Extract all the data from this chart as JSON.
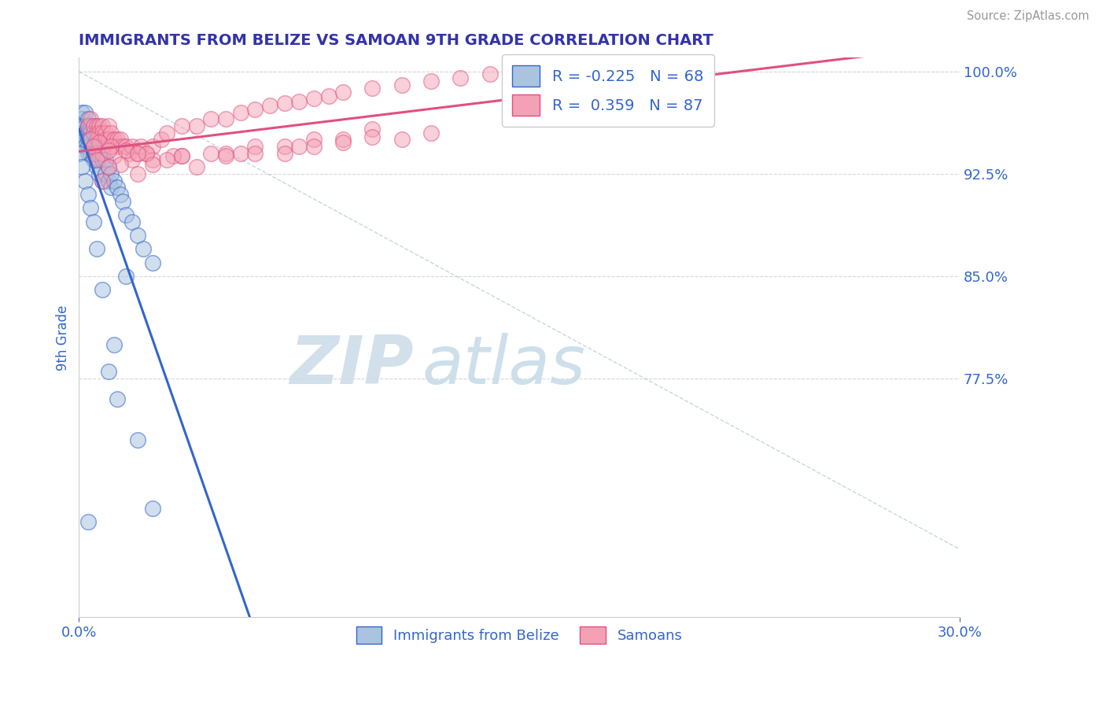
{
  "title": "IMMIGRANTS FROM BELIZE VS SAMOAN 9TH GRADE CORRELATION CHART",
  "source_text": "Source: ZipAtlas.com",
  "ylabel": "9th Grade",
  "xlim": [
    0.0,
    0.3
  ],
  "ylim": [
    0.6,
    1.01
  ],
  "color_blue": "#aac4e0",
  "color_pink": "#f4a0b5",
  "line_blue": "#3366cc",
  "line_pink": "#e05080",
  "title_color": "#3333aa",
  "tick_color": "#3366cc",
  "watermark": "ZIPatlas",
  "watermark_color": "#ccdde8",
  "ytick_values": [
    1.0,
    0.925,
    0.85,
    0.775
  ],
  "ytick_labels": [
    "100.0%",
    "92.5%",
    "85.0%",
    "77.5%"
  ],
  "belize_x": [
    0.0,
    0.0,
    0.0,
    0.001,
    0.001,
    0.001,
    0.001,
    0.001,
    0.002,
    0.002,
    0.002,
    0.002,
    0.002,
    0.003,
    0.003,
    0.003,
    0.003,
    0.003,
    0.003,
    0.004,
    0.004,
    0.004,
    0.004,
    0.005,
    0.005,
    0.005,
    0.005,
    0.006,
    0.006,
    0.006,
    0.006,
    0.007,
    0.007,
    0.007,
    0.007,
    0.008,
    0.008,
    0.008,
    0.009,
    0.009,
    0.01,
    0.01,
    0.011,
    0.011,
    0.012,
    0.013,
    0.014,
    0.015,
    0.016,
    0.018,
    0.02,
    0.022,
    0.025,
    0.0,
    0.001,
    0.002,
    0.003,
    0.004,
    0.005,
    0.006,
    0.008,
    0.012,
    0.02,
    0.025,
    0.013,
    0.003,
    0.01,
    0.016
  ],
  "belize_y": [
    0.96,
    0.955,
    0.95,
    0.97,
    0.965,
    0.96,
    0.955,
    0.95,
    0.97,
    0.96,
    0.955,
    0.95,
    0.945,
    0.965,
    0.96,
    0.955,
    0.95,
    0.945,
    0.94,
    0.96,
    0.955,
    0.95,
    0.94,
    0.96,
    0.955,
    0.945,
    0.935,
    0.95,
    0.945,
    0.94,
    0.93,
    0.945,
    0.94,
    0.935,
    0.925,
    0.94,
    0.935,
    0.92,
    0.935,
    0.925,
    0.93,
    0.92,
    0.925,
    0.915,
    0.92,
    0.915,
    0.91,
    0.905,
    0.895,
    0.89,
    0.88,
    0.87,
    0.86,
    0.94,
    0.93,
    0.92,
    0.91,
    0.9,
    0.89,
    0.87,
    0.84,
    0.8,
    0.73,
    0.68,
    0.76,
    0.67,
    0.78,
    0.85
  ],
  "samoan_x": [
    0.003,
    0.004,
    0.005,
    0.006,
    0.006,
    0.007,
    0.007,
    0.008,
    0.008,
    0.009,
    0.009,
    0.01,
    0.01,
    0.011,
    0.012,
    0.013,
    0.013,
    0.014,
    0.015,
    0.016,
    0.017,
    0.018,
    0.02,
    0.021,
    0.023,
    0.025,
    0.028,
    0.03,
    0.035,
    0.04,
    0.045,
    0.05,
    0.055,
    0.06,
    0.065,
    0.07,
    0.075,
    0.08,
    0.085,
    0.09,
    0.1,
    0.11,
    0.12,
    0.13,
    0.14,
    0.005,
    0.008,
    0.012,
    0.018,
    0.025,
    0.035,
    0.05,
    0.07,
    0.09,
    0.004,
    0.007,
    0.011,
    0.016,
    0.023,
    0.032,
    0.045,
    0.06,
    0.08,
    0.1,
    0.005,
    0.01,
    0.02,
    0.035,
    0.055,
    0.08,
    0.11,
    0.006,
    0.014,
    0.03,
    0.06,
    0.09,
    0.12,
    0.01,
    0.025,
    0.05,
    0.075,
    0.1,
    0.008,
    0.02,
    0.04,
    0.07
  ],
  "samoan_y": [
    0.96,
    0.965,
    0.96,
    0.96,
    0.955,
    0.96,
    0.955,
    0.96,
    0.955,
    0.955,
    0.95,
    0.96,
    0.95,
    0.955,
    0.95,
    0.95,
    0.945,
    0.95,
    0.945,
    0.945,
    0.94,
    0.945,
    0.94,
    0.945,
    0.94,
    0.945,
    0.95,
    0.955,
    0.96,
    0.96,
    0.965,
    0.965,
    0.97,
    0.972,
    0.975,
    0.977,
    0.978,
    0.98,
    0.982,
    0.985,
    0.988,
    0.99,
    0.993,
    0.995,
    0.998,
    0.94,
    0.94,
    0.938,
    0.935,
    0.935,
    0.938,
    0.94,
    0.945,
    0.95,
    0.95,
    0.948,
    0.945,
    0.942,
    0.94,
    0.938,
    0.94,
    0.945,
    0.95,
    0.958,
    0.945,
    0.942,
    0.94,
    0.938,
    0.94,
    0.945,
    0.95,
    0.935,
    0.932,
    0.935,
    0.94,
    0.948,
    0.955,
    0.93,
    0.932,
    0.938,
    0.945,
    0.952,
    0.92,
    0.925,
    0.93,
    0.94
  ]
}
